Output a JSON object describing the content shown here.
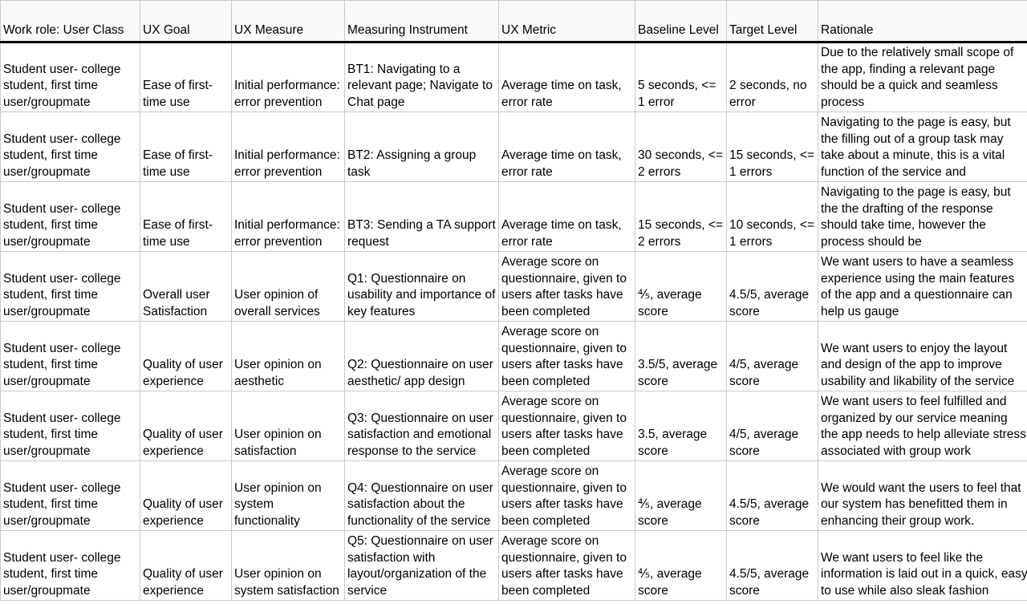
{
  "table": {
    "headers": [
      "Work role: User Class",
      "UX Goal",
      "UX Measure",
      "Measuring Instrument",
      "UX Metric",
      "Baseline Level",
      "Target Level",
      "Rationale"
    ],
    "rows": [
      {
        "role": "Student user- college student, first time user/groupmate",
        "goal": "Ease of first-time use",
        "measure": "Initial performance: error prevention",
        "instrument": "BT1: Navigating to a relevant page; Navigate to Chat page",
        "metric": "Average time on task, error rate",
        "baseline": "5 seconds, <= 1 error",
        "target": "2 seconds, no error",
        "rationale": "Due to the relatively small scope of the app, finding a relevant page should be a quick and seamless process"
      },
      {
        "role": "Student user- college student, first time user/groupmate",
        "goal": "Ease of first-time use",
        "measure": "Initial performance: error prevention",
        "instrument": "BT2: Assigning a group task",
        "metric": "Average time on task, error rate",
        "baseline": "30 seconds, <= 2 errors",
        "target": "15 seconds, <= 1 errors",
        "rationale": "Navigating to the page is easy, but the filling out of a group task may take about a minute, this is a vital function of the service and"
      },
      {
        "role": "Student user- college student, first time user/groupmate",
        "goal": "Ease of first-time use",
        "measure": "Initial performance: error prevention",
        "instrument": "BT3: Sending a TA support request",
        "metric": "Average time on task, error rate",
        "baseline": "15 seconds, <= 2 errors",
        "target": "10 seconds, <= 1 errors",
        "rationale": "Navigating to the page is easy, but the the drafting of the response should take time, however the process should be"
      },
      {
        "role": "Student user- college student, first time user/groupmate",
        "goal": "Overall user Satisfaction",
        "measure": "User opinion of overall services",
        "instrument": "Q1: Questionnaire on usability and importance of key features",
        "metric": "Average score on questionnaire, given to users after tasks have been completed",
        "baseline": "⅘, average score",
        "target": "4.5/5, average score",
        "rationale": "We want users to have a seamless experience using the main features of the app and a questionnaire can help us gauge"
      },
      {
        "role": "Student user- college student, first time user/groupmate",
        "goal": "Quality of user experience",
        "measure": "User opinion on aesthetic",
        "instrument": "Q2: Questionnaire on user aesthetic/ app design",
        "metric": "Average score on questionnaire, given to users after tasks have been completed",
        "baseline": "3.5/5, average score",
        "target": "4/5, average score",
        "rationale": "We want users to enjoy the layout and design of the app to improve usability and likability of the service"
      },
      {
        "role": "Student user- college student, first time user/groupmate",
        "goal": "Quality of user experience",
        "measure": "User opinion on satisfaction",
        "instrument": "Q3: Questionnaire on user satisfaction and emotional response to the service",
        "metric": "Average score on questionnaire, given to users after tasks have been completed",
        "baseline": "3.5, average score",
        "target": "4/5, average score",
        "rationale": "We want users to feel fulfilled and organized by our service meaning the app needs to help alleviate stress associated with group work"
      },
      {
        "role": "Student user- college student, first time user/groupmate",
        "goal": "Quality of user experience",
        "measure": "User opinion on system functionality",
        "instrument": "Q4: Questionnaire on user satisfaction about the functionality of the service",
        "metric": "Average score on questionnaire, given to users after tasks have been completed",
        "baseline": "⅘, average score",
        "target": "4.5/5, average score",
        "rationale": "We would want the users to feel that our system has benefitted them in enhancing their group work."
      },
      {
        "role": "Student user- college student, first time user/groupmate",
        "goal": "Quality of user experience",
        "measure": "User opinion on system satisfaction",
        "instrument": "Q5: Questionnaire on user satisfaction with layout/organization of the service",
        "metric": "Average score on questionnaire, given to users after tasks have been completed",
        "baseline": "⅘, average score",
        "target": "4.5/5, average score",
        "rationale": "We want users to feel like the information is laid out in a quick, easy to use while also sleak fashion"
      }
    ]
  }
}
